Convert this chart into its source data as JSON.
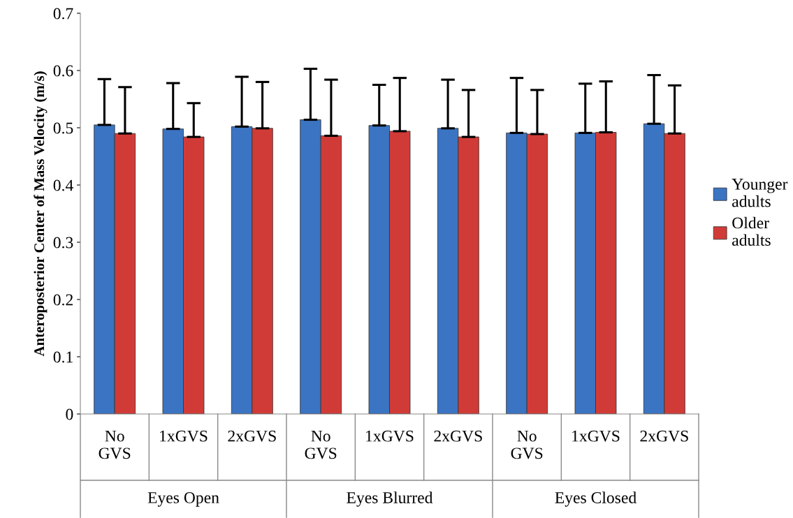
{
  "chart_data": {
    "type": "bar",
    "ylabel": "Anteroposterior Center of Mass Velocity (m/s)",
    "categories": [
      "No\nGVS",
      "1xGVS",
      "2xGVS",
      "No\nGVS",
      "1xGVS",
      "2xGVS",
      "No\nGVS",
      "1xGVS",
      "2xGVS"
    ],
    "annotations": [
      "Eyes Open",
      "Eyes Blurred",
      "Eyes Closed"
    ],
    "series": [
      {
        "name": "Younger\nadults",
        "color": "#3b74c2",
        "values": [
          0.505,
          0.498,
          0.502,
          0.514,
          0.504,
          0.499,
          0.491,
          0.491,
          0.507
        ],
        "errors": [
          [
            0.505,
            0.585
          ],
          [
            0.498,
            0.578
          ],
          [
            0.502,
            0.589
          ],
          [
            0.514,
            0.603
          ],
          [
            0.504,
            0.575
          ],
          [
            0.499,
            0.584
          ],
          [
            0.491,
            0.587
          ],
          [
            0.491,
            0.577
          ],
          [
            0.507,
            0.592
          ]
        ]
      },
      {
        "name": "Older\nadults",
        "color": "#d13b37",
        "values": [
          0.49,
          0.484,
          0.499,
          0.486,
          0.494,
          0.484,
          0.489,
          0.492,
          0.49
        ],
        "errors": [
          [
            0.49,
            0.571
          ],
          [
            0.484,
            0.543
          ],
          [
            0.499,
            0.58
          ],
          [
            0.486,
            0.584
          ],
          [
            0.494,
            0.587
          ],
          [
            0.484,
            0.566
          ],
          [
            0.489,
            0.566
          ],
          [
            0.492,
            0.581
          ],
          [
            0.49,
            0.574
          ]
        ]
      }
    ],
    "ylim": [
      0,
      0.7
    ],
    "yticks": [
      0,
      0.1,
      0.2,
      0.3,
      0.4,
      0.5,
      0.6,
      0.7
    ],
    "grid": false,
    "legend": "right"
  }
}
